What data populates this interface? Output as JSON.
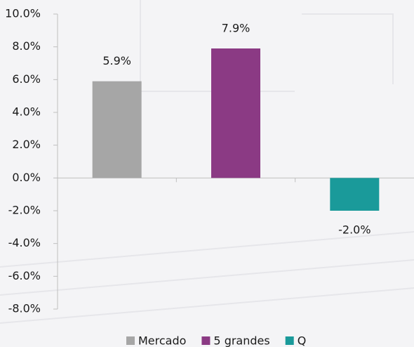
{
  "chart_data": {
    "type": "bar",
    "categories": [
      null,
      null,
      null
    ],
    "series": [
      {
        "name": "Mercado",
        "color": "#a6a6a6",
        "values": [
          5.9,
          null,
          null
        ],
        "value_labels": [
          "5.9%",
          null,
          null
        ]
      },
      {
        "name": "5 grandes",
        "color": "#8b3a84",
        "values": [
          null,
          7.9,
          null
        ],
        "value_labels": [
          null,
          "7.9%",
          null
        ]
      },
      {
        "name": "Q",
        "color": "#1a9a9a",
        "values": [
          null,
          null,
          -2.0
        ],
        "value_labels": [
          null,
          null,
          "-2.0%"
        ]
      }
    ],
    "ylim": [
      -8,
      10
    ],
    "yticks": [
      {
        "value": -8,
        "label": "-8.0%"
      },
      {
        "value": -6,
        "label": "-6.0%"
      },
      {
        "value": -4,
        "label": "-4.0%"
      },
      {
        "value": -2,
        "label": "-2.0%"
      },
      {
        "value": 0,
        "label": "0.0%"
      },
      {
        "value": 2,
        "label": "2.0%"
      },
      {
        "value": 4,
        "label": "4.0%"
      },
      {
        "value": 6,
        "label": "6.0%"
      },
      {
        "value": 8,
        "label": "8.0%"
      },
      {
        "value": 10,
        "label": "10.0%"
      }
    ],
    "grid": false
  }
}
